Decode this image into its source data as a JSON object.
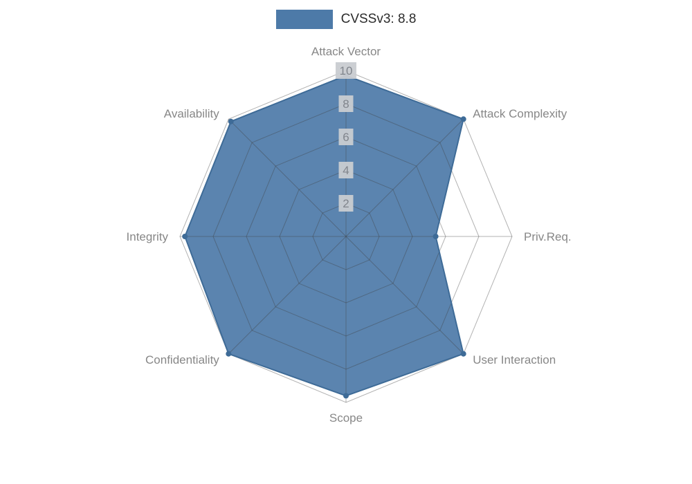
{
  "legend": {
    "label": "CVSSv3: 8.8",
    "swatch_color": "#4d7aa8"
  },
  "chart_data": {
    "type": "radar",
    "title": "CVSSv3: 8.8",
    "max": 10,
    "tick_levels": [
      2,
      4,
      6,
      8,
      10
    ],
    "categories": [
      "Attack Vector",
      "Attack Complexity",
      "Priv.Req.",
      "User Interaction",
      "Scope",
      "Confidentiality",
      "Integrity",
      "Availability"
    ],
    "series": [
      {
        "name": "CVSSv3: 8.8",
        "values": [
          9.7,
          10,
          5.4,
          10,
          9.6,
          10,
          9.7,
          9.8
        ]
      }
    ],
    "legend_position": "top-center",
    "grid": "spider-web",
    "rings": 5,
    "colors": {
      "fill": "#4d7aa8",
      "edge": "#3e6b97",
      "grid": "#b3b3b3",
      "axis_label": "#878787",
      "tick_text": "#80858c",
      "tick_bg": "#c9ccd1"
    }
  }
}
